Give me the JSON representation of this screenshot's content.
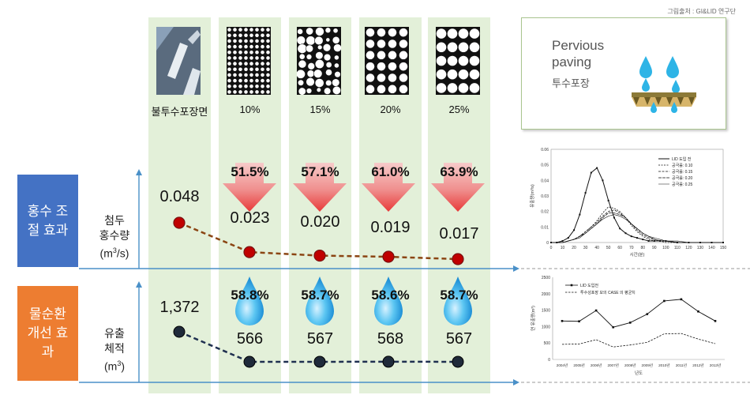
{
  "credit": "그림출처 : GI&LID 연구단",
  "columns": [
    {
      "label": "불투수포장면"
    },
    {
      "label": "10%"
    },
    {
      "label": "15%"
    },
    {
      "label": "20%"
    },
    {
      "label": "25%"
    }
  ],
  "pervious": {
    "en": "Pervious paving",
    "ko": "투수포장"
  },
  "flood": {
    "title": "홍수 조절 효과",
    "ylabel": "첨두 홍수량 (m3/s)",
    "values": [
      "0.048",
      "0.023",
      "0.020",
      "0.019",
      "0.017"
    ],
    "reductions": [
      "51.5%",
      "57.1%",
      "61.0%",
      "63.9%"
    ]
  },
  "water": {
    "title": "물순환 개선 효과",
    "ylabel": "유출 체적 (m3)",
    "values": [
      "1,372",
      "566",
      "567",
      "568",
      "567"
    ],
    "percents": [
      "58.8%",
      "58.7%",
      "58.6%",
      "58.7%"
    ]
  },
  "chart_data": [
    {
      "type": "line",
      "categories": [
        "불투수포장면",
        "10%",
        "15%",
        "20%",
        "25%"
      ],
      "series": [
        {
          "name": "첨두 홍수량",
          "values": [
            0.048,
            0.023,
            0.02,
            0.019,
            0.017
          ]
        }
      ],
      "ylabel": "첨두 홍수량 (m3/s)"
    },
    {
      "type": "line",
      "categories": [
        "불투수포장면",
        "10%",
        "15%",
        "20%",
        "25%"
      ],
      "series": [
        {
          "name": "유출 체적",
          "values": [
            1372,
            566,
            567,
            568,
            567
          ]
        }
      ],
      "ylabel": "유출 체적 (m3)"
    },
    {
      "type": "line",
      "x": [
        0,
        5,
        10,
        15,
        20,
        25,
        30,
        35,
        40,
        45,
        50,
        55,
        60,
        65,
        70,
        75,
        80,
        85,
        90,
        95,
        100,
        110,
        120,
        130,
        140,
        150
      ],
      "series": [
        {
          "name": "LID 도입 전",
          "values": [
            0,
            0,
            0.001,
            0.003,
            0.008,
            0.018,
            0.032,
            0.045,
            0.048,
            0.04,
            0.027,
            0.016,
            0.009,
            0.006,
            0.004,
            0.003,
            0.002,
            0.001,
            0.001,
            0.001,
            0.001,
            0,
            0,
            0,
            0,
            0
          ]
        },
        {
          "name": "공극률: 0.10",
          "values": [
            0,
            0,
            0,
            0.001,
            0.002,
            0.004,
            0.007,
            0.01,
            0.014,
            0.019,
            0.023,
            0.022,
            0.02,
            0.016,
            0.011,
            0.007,
            0.004,
            0.002,
            0.001,
            0.001,
            0,
            0,
            0,
            0,
            0,
            0
          ]
        },
        {
          "name": "공극률: 0.15",
          "values": [
            0,
            0,
            0,
            0.001,
            0.002,
            0.004,
            0.007,
            0.01,
            0.013,
            0.017,
            0.02,
            0.021,
            0.019,
            0.016,
            0.012,
            0.008,
            0.005,
            0.003,
            0.002,
            0.001,
            0.001,
            0,
            0,
            0,
            0,
            0
          ]
        },
        {
          "name": "공극률: 0.20",
          "values": [
            0,
            0,
            0,
            0.001,
            0.002,
            0.004,
            0.006,
            0.009,
            0.012,
            0.016,
            0.019,
            0.019,
            0.018,
            0.016,
            0.012,
            0.009,
            0.006,
            0.004,
            0.002,
            0.001,
            0.001,
            0,
            0,
            0,
            0,
            0
          ]
        },
        {
          "name": "공극률: 0.25",
          "values": [
            0,
            0,
            0,
            0.001,
            0.002,
            0.003,
            0.006,
            0.009,
            0.012,
            0.015,
            0.017,
            0.018,
            0.017,
            0.015,
            0.012,
            0.009,
            0.006,
            0.004,
            0.003,
            0.002,
            0.001,
            0.001,
            0,
            0,
            0,
            0
          ]
        }
      ],
      "xlabel": "시간(분)",
      "ylabel": "유출량(m³/s)",
      "xlim": [
        0,
        150
      ],
      "ylim": [
        0,
        0.06
      ],
      "xticks": [
        "0",
        "10",
        "20",
        "30",
        "40",
        "50",
        "60",
        "70",
        "80",
        "90",
        "100",
        "110",
        "120",
        "130",
        "140",
        "150"
      ],
      "yticks": [
        "0",
        "0.01",
        "0.02",
        "0.03",
        "0.04",
        "0.05",
        "0.06"
      ],
      "legend": "top-right"
    },
    {
      "type": "line",
      "categories": [
        "2004년",
        "2005년",
        "2006년",
        "2007년",
        "2008년",
        "2009년",
        "2010년",
        "2011년",
        "2012년",
        "2013년"
      ],
      "series": [
        {
          "name": "LID 도입전",
          "values": [
            1170,
            1160,
            1490,
            980,
            1120,
            1380,
            1780,
            1830,
            1460,
            1170
          ]
        },
        {
          "name": "투수성포장 모의 CASE 의 평균치",
          "values": [
            460,
            470,
            600,
            380,
            440,
            520,
            780,
            790,
            620,
            480
          ]
        }
      ],
      "xlabel": "년도",
      "ylabel": "연 유출량(m³)",
      "ylim": [
        0,
        2500
      ],
      "yticks": [
        "0",
        "500",
        "1000",
        "1500",
        "2000",
        "2500"
      ],
      "legend": "top-left"
    }
  ]
}
